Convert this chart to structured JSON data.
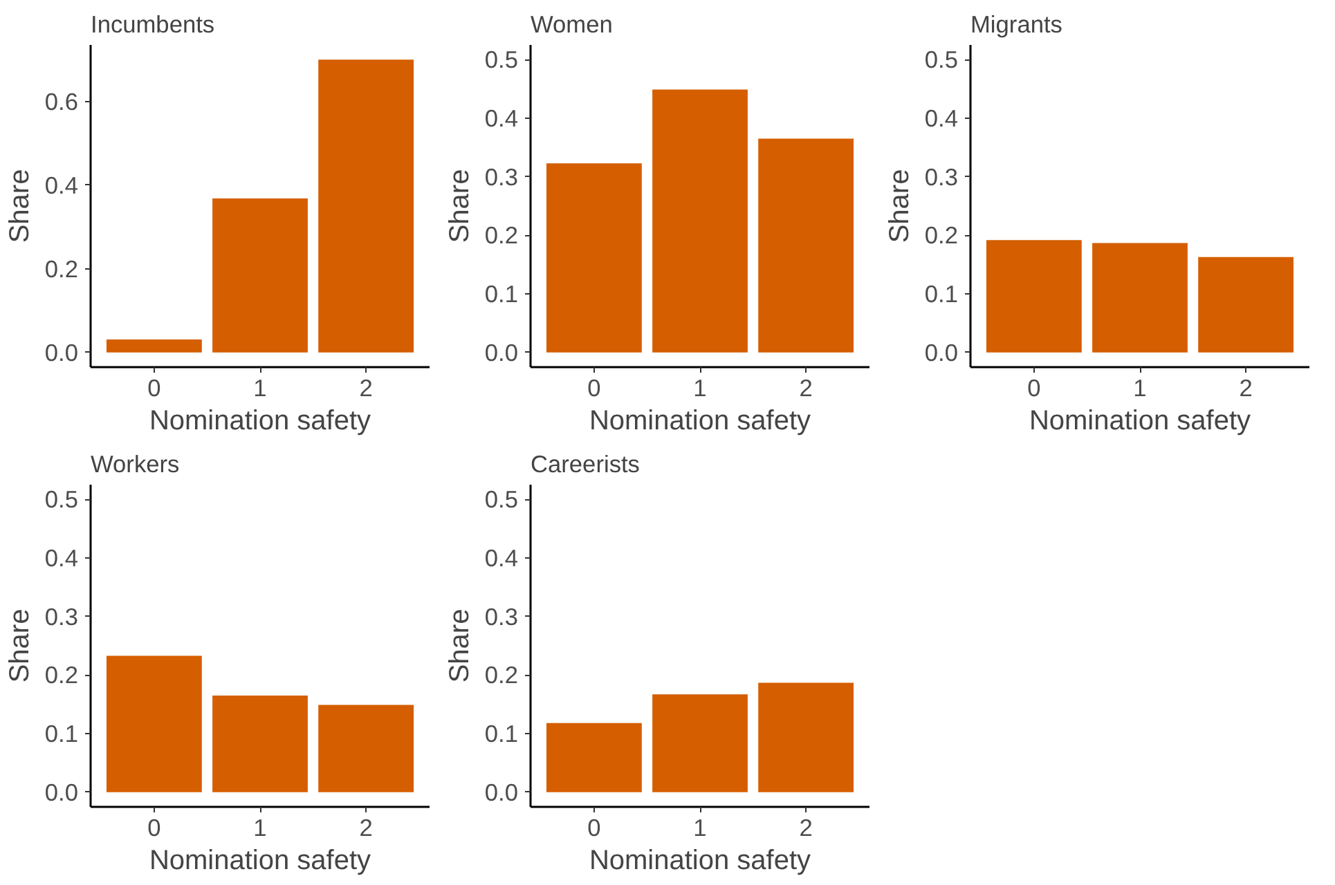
{
  "chart_data": [
    {
      "type": "bar",
      "title": "Incumbents",
      "xlabel": "Nomination safety",
      "ylabel": "Share",
      "categories": [
        "0",
        "1",
        "2"
      ],
      "values": [
        0.031,
        0.368,
        0.7
      ],
      "color": "#d55e00",
      "ylim": [
        -0.035,
        0.735
      ],
      "yticks": [
        {
          "value": 0,
          "label": "0.0"
        },
        {
          "value": 0.2,
          "label": "0.2"
        },
        {
          "value": 0.4,
          "label": "0.4"
        },
        {
          "value": 0.6,
          "label": "0.6"
        }
      ],
      "grid": false
    },
    {
      "type": "bar",
      "title": "Women",
      "xlabel": "Nomination safety",
      "ylabel": "Share",
      "categories": [
        "0",
        "1",
        "2"
      ],
      "values": [
        0.323,
        0.449,
        0.365
      ],
      "color": "#d55e00",
      "ylim": [
        -0.025,
        0.525
      ],
      "yticks": [
        {
          "value": 0,
          "label": "0.0"
        },
        0.1,
        0.2,
        0.3,
        0.4,
        0.5
      ],
      "grid": false
    },
    {
      "type": "bar",
      "title": "Migrants",
      "xlabel": "Nomination safety",
      "ylabel": "Share",
      "categories": [
        "0",
        "1",
        "2"
      ],
      "values": [
        0.192,
        0.187,
        0.163
      ],
      "color": "#d55e00",
      "ylim": [
        -0.025,
        0.525
      ],
      "yticks": [
        {
          "value": 0,
          "label": "0.0"
        },
        0.1,
        0.2,
        0.3,
        0.4,
        0.5
      ],
      "grid": false
    },
    {
      "type": "bar",
      "title": "Workers",
      "xlabel": "Nomination safety",
      "ylabel": "Share",
      "categories": [
        "0",
        "1",
        "2"
      ],
      "values": [
        0.233,
        0.165,
        0.149
      ],
      "color": "#d55e00",
      "ylim": [
        -0.025,
        0.525
      ],
      "yticks": [
        {
          "value": 0,
          "label": "0.0"
        },
        0.1,
        0.2,
        0.3,
        0.4,
        0.5
      ],
      "grid": false
    },
    {
      "type": "bar",
      "title": "Careerists",
      "xlabel": "Nomination safety",
      "ylabel": "Share",
      "categories": [
        "0",
        "1",
        "2"
      ],
      "values": [
        0.118,
        0.167,
        0.187
      ],
      "color": "#d55e00",
      "ylim": [
        -0.025,
        0.525
      ],
      "yticks": [
        {
          "value": 0,
          "label": "0.0"
        },
        0.1,
        0.2,
        0.3,
        0.4,
        0.5
      ],
      "grid": false
    }
  ]
}
